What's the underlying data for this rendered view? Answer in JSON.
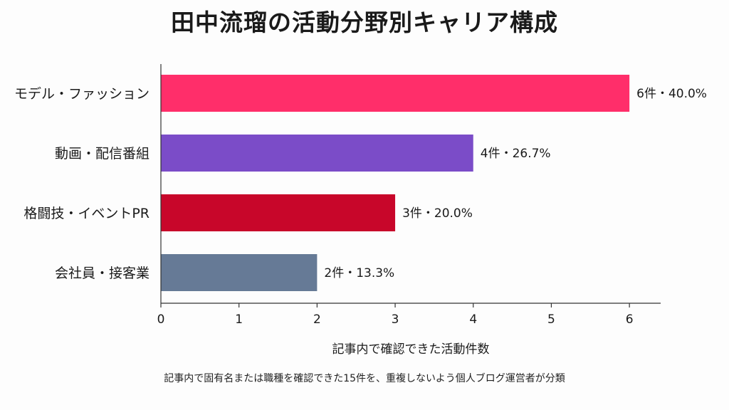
{
  "title": "田中流瑠の活動分野別キャリア構成",
  "footnote": "記事内で固有名または職種を確認できた15件を、重複しないよう個人ブログ運営者が分類",
  "chart_data": {
    "type": "bar",
    "orientation": "horizontal",
    "title": "田中流瑠の活動分野別キャリア構成",
    "xlabel": "記事内で確認できた活動件数",
    "ylabel": "",
    "xlim": [
      0,
      6.4
    ],
    "xticks": [
      0,
      1,
      2,
      3,
      4,
      5,
      6
    ],
    "grid": false,
    "legend": "none",
    "categories": [
      "モデル・ファッション",
      "動画・配信番組",
      "格闘技・イベントPR",
      "会社員・接客業"
    ],
    "values": [
      6,
      4,
      3,
      2
    ],
    "data_labels": [
      "6件・40.0%",
      "4件・26.7%",
      "3件・20.0%",
      "2件・13.3%"
    ],
    "colors": [
      "#FF2E6A",
      "#7B4CC8",
      "#C8062A",
      "#667A96"
    ]
  }
}
